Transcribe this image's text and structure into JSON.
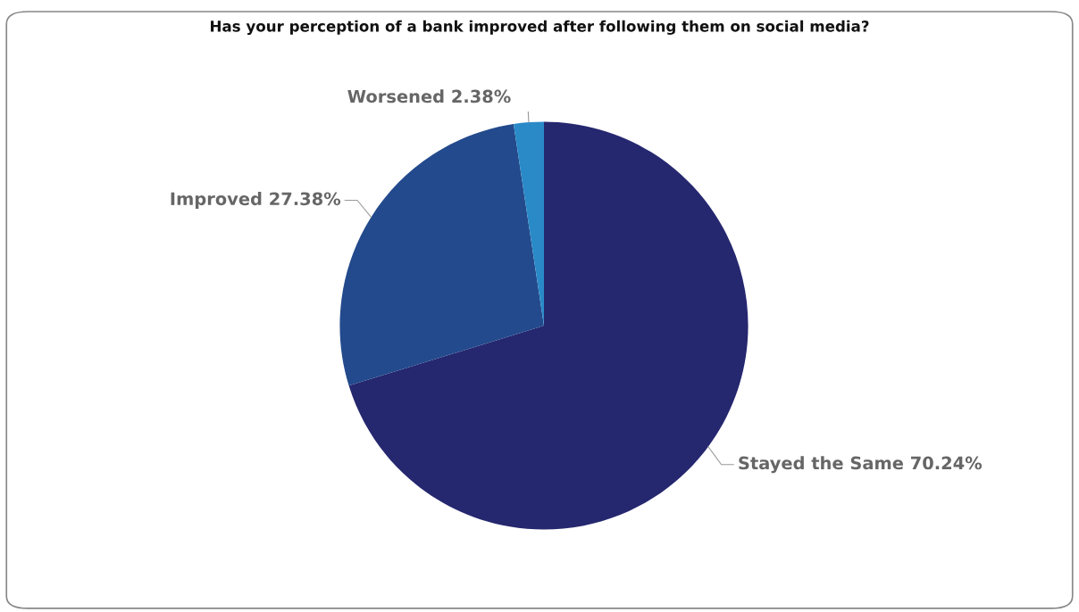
{
  "chart_data": {
    "type": "pie",
    "title": "Has your perception of a bank improved after following them on social media?",
    "categories": [
      "Stayed the Same",
      "Improved",
      "Worsened"
    ],
    "values": [
      70.24,
      27.38,
      2.38
    ],
    "value_labels": [
      "70.24%",
      "27.38%",
      "2.38%"
    ],
    "colors": [
      "#25276f",
      "#234a8c",
      "#2a8ac8"
    ]
  }
}
